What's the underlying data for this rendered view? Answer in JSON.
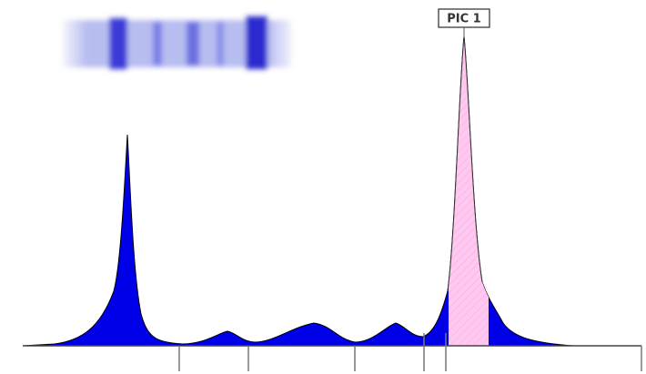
{
  "peak_label": {
    "text": "PIC 1"
  }
}
